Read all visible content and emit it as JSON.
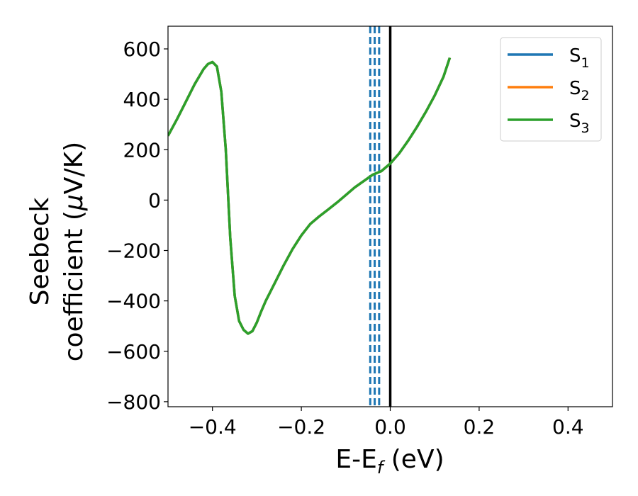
{
  "chart_data": {
    "type": "line",
    "xlabel": {
      "main": "E-E",
      "sub": "f",
      "unit": " (eV)"
    },
    "ylabel": {
      "line1": "Seebeck",
      "line2_pre": "coefficient  (",
      "mu": "μ",
      "line2_post": "V/K)"
    },
    "xlim": [
      -0.5,
      0.5
    ],
    "ylim": [
      -820,
      690
    ],
    "xticks": [
      -0.4,
      -0.2,
      0.0,
      0.2,
      0.4
    ],
    "xtick_labels": [
      "−0.4",
      "−0.2",
      "0.0",
      "0.2",
      "0.4"
    ],
    "yticks": [
      600,
      400,
      200,
      0,
      -200,
      -400,
      -600,
      -800
    ],
    "ytick_labels": [
      "600",
      "400",
      "200",
      "0",
      "−200",
      "−400",
      "−600",
      "−800"
    ],
    "legend_position": "top-right",
    "legend": [
      {
        "main": "S",
        "sub": "1",
        "color": "#1f77b4"
      },
      {
        "main": "S",
        "sub": "2",
        "color": "#ff7f0e"
      },
      {
        "main": "S",
        "sub": "3",
        "color": "#2ca02c"
      }
    ],
    "x": [
      -0.5,
      -0.48,
      -0.46,
      -0.44,
      -0.42,
      -0.41,
      -0.4,
      -0.39,
      -0.38,
      -0.37,
      -0.36,
      -0.35,
      -0.34,
      -0.33,
      -0.32,
      -0.31,
      -0.3,
      -0.29,
      -0.28,
      -0.26,
      -0.24,
      -0.22,
      -0.2,
      -0.18,
      -0.16,
      -0.14,
      -0.12,
      -0.1,
      -0.08,
      -0.06,
      -0.04,
      -0.02,
      0.0,
      0.02,
      0.04,
      0.06,
      0.08,
      0.1,
      0.12,
      0.134
    ],
    "series": [
      {
        "name": "S1",
        "color": "#1f77b4",
        "values": [
          255,
          320,
          390,
          460,
          520,
          540,
          548,
          530,
          430,
          200,
          -150,
          -380,
          -480,
          -515,
          -530,
          -520,
          -485,
          -440,
          -400,
          -330,
          -260,
          -195,
          -140,
          -95,
          -65,
          -38,
          -10,
          20,
          50,
          75,
          100,
          115,
          145,
          185,
          235,
          290,
          350,
          415,
          490,
          565
        ]
      },
      {
        "name": "S2",
        "color": "#ff7f0e",
        "values": [
          255,
          320,
          390,
          460,
          520,
          540,
          548,
          530,
          430,
          200,
          -150,
          -380,
          -480,
          -515,
          -530,
          -520,
          -485,
          -440,
          -400,
          -330,
          -260,
          -195,
          -140,
          -95,
          -65,
          -38,
          -10,
          20,
          50,
          75,
          100,
          115,
          145,
          185,
          235,
          290,
          350,
          415,
          490,
          565
        ]
      },
      {
        "name": "S3",
        "color": "#2ca02c",
        "values": [
          255,
          320,
          390,
          460,
          520,
          540,
          548,
          530,
          430,
          200,
          -150,
          -380,
          -480,
          -515,
          -530,
          -520,
          -485,
          -440,
          -400,
          -330,
          -260,
          -195,
          -140,
          -95,
          -65,
          -38,
          -10,
          20,
          50,
          75,
          100,
          115,
          145,
          185,
          235,
          290,
          350,
          415,
          490,
          565
        ]
      }
    ],
    "dashed_vlines": {
      "x": [
        -0.045,
        -0.035,
        -0.025
      ],
      "color": "#1f77b4"
    },
    "solid_vline": {
      "x": 0.0,
      "color": "#000000"
    }
  }
}
